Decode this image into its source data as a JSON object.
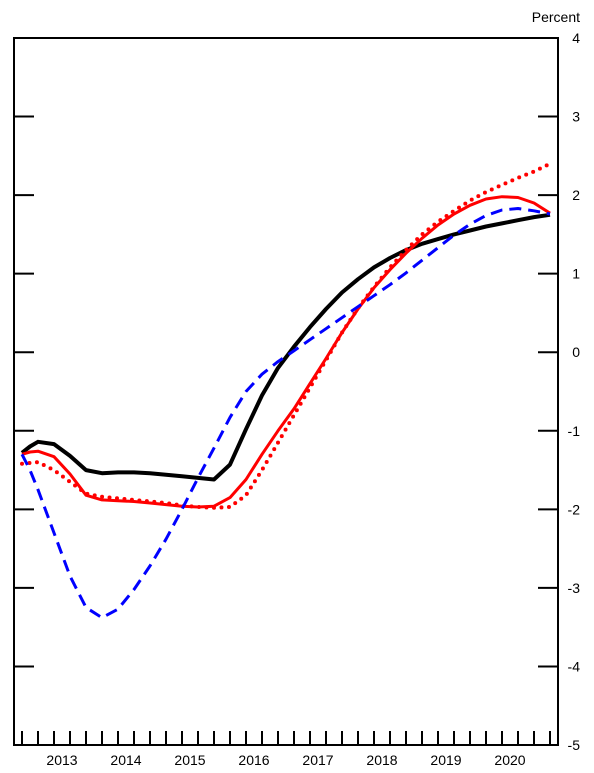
{
  "chart_data": {
    "type": "line",
    "title": "",
    "xlabel": "",
    "ylabel": "Percent",
    "ylim": [
      -5,
      4
    ],
    "xlim": [
      2012.25,
      2020.75
    ],
    "y_ticks": [
      4,
      3,
      2,
      1,
      0,
      -1,
      -2,
      -3,
      -4,
      -5
    ],
    "x_tick_labels": [
      "2013",
      "2014",
      "2015",
      "2016",
      "2017",
      "2018",
      "2019",
      "2020"
    ],
    "x_label_positions": [
      2013.0,
      2014.0,
      2015.0,
      2016.0,
      2017.0,
      2018.0,
      2019.0,
      2020.0
    ],
    "x_minor_ticks": [
      2012.375,
      2012.625,
      2012.875,
      2013.125,
      2013.375,
      2013.625,
      2013.875,
      2014.125,
      2014.375,
      2014.625,
      2014.875,
      2015.125,
      2015.375,
      2015.625,
      2015.875,
      2016.125,
      2016.375,
      2016.625,
      2016.875,
      2017.125,
      2017.375,
      2017.625,
      2017.875,
      2018.125,
      2018.375,
      2018.625,
      2018.875,
      2019.125,
      2019.375,
      2019.625,
      2019.875,
      2020.125,
      2020.375,
      2020.625
    ],
    "grid": false,
    "legend": "none",
    "series": [
      {
        "color": "#000000",
        "style": "solid",
        "width": 4,
        "x": [
          2012.375,
          2012.5,
          2012.625,
          2012.875,
          2013.125,
          2013.375,
          2013.625,
          2013.875,
          2014.125,
          2014.375,
          2014.625,
          2014.875,
          2015.125,
          2015.375,
          2015.625,
          2015.875,
          2016.125,
          2016.375,
          2016.625,
          2016.875,
          2017.125,
          2017.375,
          2017.625,
          2017.875,
          2018.125,
          2018.375,
          2018.625,
          2018.875,
          2019.125,
          2019.375,
          2019.625,
          2019.875,
          2020.125,
          2020.375,
          2020.625
        ],
        "y": [
          -1.28,
          -1.2,
          -1.14,
          -1.17,
          -1.32,
          -1.5,
          -1.54,
          -1.53,
          -1.53,
          -1.54,
          -1.56,
          -1.58,
          -1.6,
          -1.62,
          -1.43,
          -0.98,
          -0.55,
          -0.2,
          0.07,
          0.32,
          0.55,
          0.76,
          0.93,
          1.08,
          1.2,
          1.3,
          1.38,
          1.44,
          1.5,
          1.55,
          1.6,
          1.64,
          1.68,
          1.72,
          1.75
        ]
      },
      {
        "color": "#ff0000",
        "style": "solid",
        "width": 3,
        "x": [
          2012.375,
          2012.5,
          2012.625,
          2012.875,
          2013.125,
          2013.375,
          2013.625,
          2013.875,
          2014.125,
          2014.375,
          2014.625,
          2014.875,
          2015.125,
          2015.375,
          2015.625,
          2015.875,
          2016.125,
          2016.375,
          2016.625,
          2016.875,
          2017.125,
          2017.375,
          2017.625,
          2017.875,
          2018.125,
          2018.375,
          2018.625,
          2018.875,
          2019.125,
          2019.375,
          2019.625,
          2019.875,
          2020.125,
          2020.375,
          2020.625
        ],
        "y": [
          -1.3,
          -1.27,
          -1.26,
          -1.33,
          -1.55,
          -1.82,
          -1.88,
          -1.89,
          -1.9,
          -1.92,
          -1.94,
          -1.96,
          -1.97,
          -1.96,
          -1.85,
          -1.62,
          -1.3,
          -1.0,
          -0.72,
          -0.4,
          -0.08,
          0.25,
          0.55,
          0.82,
          1.05,
          1.26,
          1.45,
          1.62,
          1.76,
          1.87,
          1.95,
          1.98,
          1.97,
          1.9,
          1.77
        ]
      },
      {
        "color": "#ff0000",
        "style": "dotted",
        "width": 4,
        "x": [
          2012.375,
          2012.625,
          2012.875,
          2013.125,
          2013.375,
          2013.625,
          2013.875,
          2014.125,
          2014.375,
          2014.625,
          2014.875,
          2015.125,
          2015.375,
          2015.625,
          2015.875,
          2016.125,
          2016.375,
          2016.625,
          2016.875,
          2017.125,
          2017.375,
          2017.625,
          2017.875,
          2018.125,
          2018.375,
          2018.625,
          2018.875,
          2019.125,
          2019.375,
          2019.625,
          2019.875,
          2020.125,
          2020.375,
          2020.625
        ],
        "y": [
          -1.42,
          -1.4,
          -1.5,
          -1.65,
          -1.8,
          -1.84,
          -1.86,
          -1.88,
          -1.9,
          -1.92,
          -1.95,
          -1.97,
          -1.98,
          -1.97,
          -1.82,
          -1.5,
          -1.15,
          -0.8,
          -0.45,
          -0.1,
          0.25,
          0.56,
          0.83,
          1.08,
          1.3,
          1.5,
          1.66,
          1.8,
          1.93,
          2.04,
          2.13,
          2.22,
          2.3,
          2.4
        ]
      },
      {
        "color": "#0000ff",
        "style": "dashed",
        "width": 3,
        "x": [
          2012.375,
          2012.5,
          2012.625,
          2012.875,
          2013.125,
          2013.375,
          2013.625,
          2013.875,
          2014.125,
          2014.375,
          2014.625,
          2014.875,
          2015.125,
          2015.375,
          2015.625,
          2015.875,
          2016.125,
          2016.375,
          2016.625,
          2016.875,
          2017.125,
          2017.375,
          2017.625,
          2017.875,
          2018.125,
          2018.375,
          2018.625,
          2018.875,
          2019.125,
          2019.375,
          2019.625,
          2019.875,
          2020.125,
          2020.375,
          2020.625
        ],
        "y": [
          -1.3,
          -1.5,
          -1.75,
          -2.3,
          -2.85,
          -3.25,
          -3.38,
          -3.27,
          -3.02,
          -2.72,
          -2.38,
          -2.0,
          -1.6,
          -1.22,
          -0.83,
          -0.5,
          -0.28,
          -0.12,
          0.02,
          0.16,
          0.3,
          0.44,
          0.58,
          0.72,
          0.86,
          1.01,
          1.17,
          1.33,
          1.49,
          1.63,
          1.74,
          1.81,
          1.83,
          1.8,
          1.76
        ]
      }
    ]
  }
}
